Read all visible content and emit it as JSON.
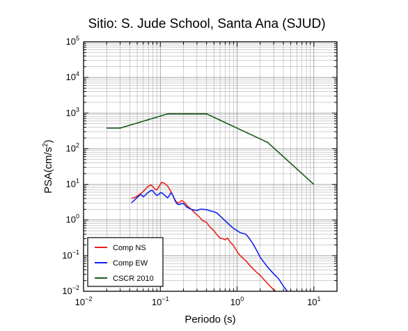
{
  "chart_data": {
    "type": "line",
    "title": "Sitio: S. Jude School, Santa Ana (SJUD)",
    "xlabel": "Periodo (s)",
    "ylabel_base": "PSA(cm/s",
    "ylabel_sup": "2",
    "ylabel_close": ")",
    "xscale": "log",
    "yscale": "log",
    "xlim": [
      0.01,
      20
    ],
    "ylim": [
      0.01,
      100000
    ],
    "grid": true,
    "legend_position": "bottom-left",
    "x_ticks": [
      {
        "value": 0.01,
        "base": "10",
        "exp": "−2"
      },
      {
        "value": 0.1,
        "base": "10",
        "exp": "−1"
      },
      {
        "value": 1,
        "base": "10",
        "exp": "0"
      },
      {
        "value": 10,
        "base": "10",
        "exp": "1"
      }
    ],
    "y_ticks": [
      {
        "value": 0.01,
        "base": "10",
        "exp": "−2"
      },
      {
        "value": 0.1,
        "base": "10",
        "exp": "−1"
      },
      {
        "value": 1,
        "base": "10",
        "exp": "0"
      },
      {
        "value": 10,
        "base": "10",
        "exp": "1"
      },
      {
        "value": 100,
        "base": "10",
        "exp": "2"
      },
      {
        "value": 1000,
        "base": "10",
        "exp": "3"
      },
      {
        "value": 10000,
        "base": "10",
        "exp": "4"
      },
      {
        "value": 100000,
        "base": "10",
        "exp": "5"
      }
    ],
    "series": [
      {
        "name": "Comp NS",
        "color": "#e8201a",
        "points": [
          [
            0.042,
            4.0
          ],
          [
            0.048,
            4.4
          ],
          [
            0.052,
            5.0
          ],
          [
            0.056,
            5.6
          ],
          [
            0.06,
            6.3
          ],
          [
            0.064,
            7.4
          ],
          [
            0.068,
            8.5
          ],
          [
            0.072,
            9.2
          ],
          [
            0.076,
            9.5
          ],
          [
            0.08,
            8.7
          ],
          [
            0.084,
            7.6
          ],
          [
            0.088,
            7.0
          ],
          [
            0.092,
            7.4
          ],
          [
            0.096,
            8.6
          ],
          [
            0.1,
            10.0
          ],
          [
            0.105,
            11.5
          ],
          [
            0.11,
            11.0
          ],
          [
            0.118,
            10.0
          ],
          [
            0.125,
            8.8
          ],
          [
            0.133,
            7.2
          ],
          [
            0.142,
            5.5
          ],
          [
            0.152,
            4.0
          ],
          [
            0.162,
            3.2
          ],
          [
            0.172,
            3.0
          ],
          [
            0.182,
            3.3
          ],
          [
            0.19,
            3.5
          ],
          [
            0.2,
            3.3
          ],
          [
            0.21,
            3.0
          ],
          [
            0.225,
            2.5
          ],
          [
            0.24,
            2.2
          ],
          [
            0.26,
            1.9
          ],
          [
            0.28,
            1.6
          ],
          [
            0.3,
            1.4
          ],
          [
            0.33,
            1.15
          ],
          [
            0.36,
            0.95
          ],
          [
            0.38,
            0.9
          ],
          [
            0.4,
            0.85
          ],
          [
            0.44,
            0.65
          ],
          [
            0.5,
            0.5
          ],
          [
            0.55,
            0.38
          ],
          [
            0.6,
            0.31
          ],
          [
            0.65,
            0.3
          ],
          [
            0.7,
            0.28
          ],
          [
            0.75,
            0.31
          ],
          [
            0.8,
            0.25
          ],
          [
            0.9,
            0.19
          ],
          [
            1.0,
            0.13
          ],
          [
            1.1,
            0.1
          ],
          [
            1.3,
            0.072
          ],
          [
            1.5,
            0.05
          ],
          [
            1.8,
            0.034
          ],
          [
            2.0,
            0.028
          ],
          [
            2.3,
            0.02
          ],
          [
            2.6,
            0.015
          ],
          [
            3.0,
            0.011
          ],
          [
            3.2,
            0.01
          ]
        ]
      },
      {
        "name": "Comp EW",
        "color": "#1020e8",
        "points": [
          [
            0.042,
            3.0
          ],
          [
            0.046,
            3.6
          ],
          [
            0.05,
            4.3
          ],
          [
            0.053,
            4.8
          ],
          [
            0.056,
            5.2
          ],
          [
            0.06,
            4.5
          ],
          [
            0.064,
            5.0
          ],
          [
            0.068,
            5.8
          ],
          [
            0.072,
            6.2
          ],
          [
            0.076,
            6.8
          ],
          [
            0.08,
            6.6
          ],
          [
            0.085,
            5.5
          ],
          [
            0.09,
            4.9
          ],
          [
            0.095,
            5.2
          ],
          [
            0.1,
            5.8
          ],
          [
            0.105,
            5.8
          ],
          [
            0.11,
            5.3
          ],
          [
            0.118,
            4.6
          ],
          [
            0.124,
            4.2
          ],
          [
            0.13,
            4.7
          ],
          [
            0.136,
            5.7
          ],
          [
            0.142,
            5.4
          ],
          [
            0.148,
            4.6
          ],
          [
            0.156,
            3.4
          ],
          [
            0.166,
            2.8
          ],
          [
            0.176,
            2.7
          ],
          [
            0.19,
            2.9
          ],
          [
            0.2,
            2.9
          ],
          [
            0.21,
            2.6
          ],
          [
            0.22,
            2.3
          ],
          [
            0.24,
            2.1
          ],
          [
            0.26,
            1.95
          ],
          [
            0.28,
            1.9
          ],
          [
            0.3,
            1.85
          ],
          [
            0.33,
            2.0
          ],
          [
            0.36,
            2.0
          ],
          [
            0.4,
            1.95
          ],
          [
            0.45,
            1.8
          ],
          [
            0.5,
            1.7
          ],
          [
            0.55,
            1.55
          ],
          [
            0.6,
            1.3
          ],
          [
            0.7,
            0.95
          ],
          [
            0.8,
            0.72
          ],
          [
            0.9,
            0.58
          ],
          [
            1.0,
            0.5
          ],
          [
            1.1,
            0.44
          ],
          [
            1.2,
            0.42
          ],
          [
            1.3,
            0.4
          ],
          [
            1.4,
            0.33
          ],
          [
            1.6,
            0.22
          ],
          [
            1.8,
            0.14
          ],
          [
            2.0,
            0.09
          ],
          [
            2.3,
            0.06
          ],
          [
            2.6,
            0.043
          ],
          [
            3.0,
            0.031
          ],
          [
            3.5,
            0.022
          ],
          [
            4.0,
            0.014
          ],
          [
            4.5,
            0.01
          ]
        ]
      },
      {
        "name": "CSCR 2010",
        "color": "#1a5c1a",
        "points": [
          [
            0.02,
            380
          ],
          [
            0.03,
            380
          ],
          [
            0.125,
            950
          ],
          [
            0.4,
            950
          ],
          [
            2.5,
            150
          ],
          [
            10,
            10
          ]
        ]
      }
    ]
  }
}
